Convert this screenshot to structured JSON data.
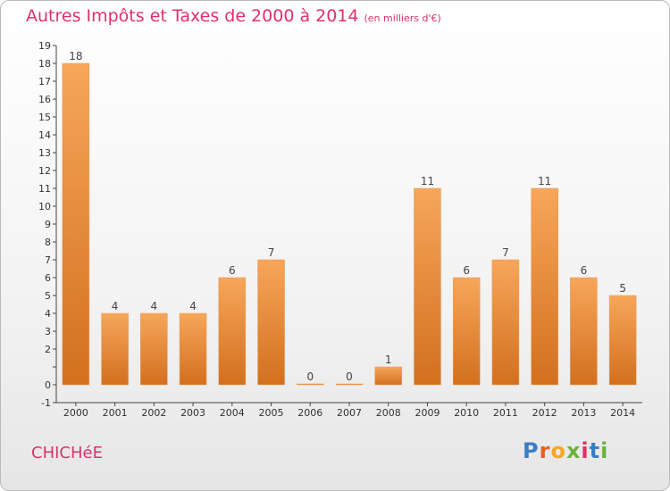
{
  "header": {
    "title": "Autres Impôts et Taxes de 2000 à 2014",
    "subtitle": "(en milliers d'€)"
  },
  "footer": {
    "commune": "CHICHéE",
    "logo_letters": [
      "P",
      "r",
      "o",
      "x",
      "i",
      "t",
      "i"
    ],
    "logo_colors": [
      "#3a7fc4",
      "#e2612b",
      "#f5a623",
      "#6bb33a",
      "#e0306a",
      "#3a7fc4",
      "#6bb33a"
    ]
  },
  "chart_data": {
    "type": "bar",
    "categories": [
      "2000",
      "2001",
      "2002",
      "2003",
      "2004",
      "2005",
      "2006",
      "2007",
      "2008",
      "2009",
      "2010",
      "2011",
      "2012",
      "2013",
      "2014"
    ],
    "values": [
      18,
      4,
      4,
      4,
      6,
      7,
      0,
      0,
      1,
      11,
      6,
      7,
      11,
      6,
      5
    ],
    "data_labels": [
      "18",
      "4",
      "4",
      "4",
      "6",
      "7",
      "0",
      "0",
      "1",
      "11",
      "6",
      "7",
      "11",
      "6",
      "5"
    ],
    "y_ticks": [
      "-1",
      "0",
      "",
      "2",
      "3",
      "4",
      "5",
      "6",
      "7",
      "8",
      "9",
      "10",
      "11",
      "12",
      "13",
      "14",
      "15",
      "16",
      "17",
      "18",
      "19"
    ],
    "ylim": [
      -1,
      19
    ],
    "bar_color_top": "#f7a65a",
    "bar_color_bottom": "#d2701f",
    "grid": false
  }
}
